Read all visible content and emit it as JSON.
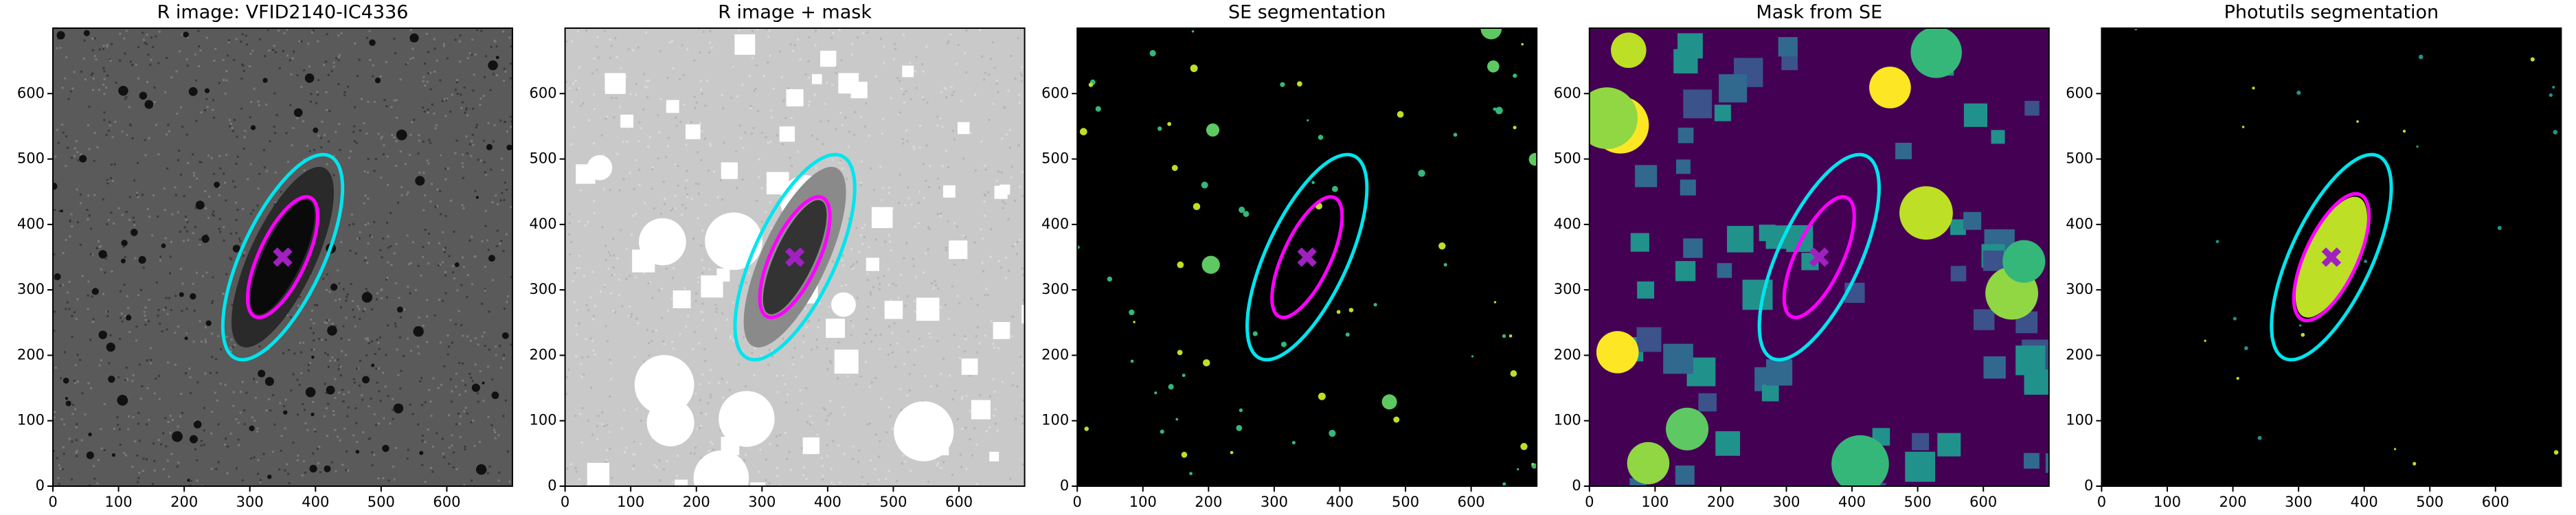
{
  "chart_data": [
    {
      "type": "image",
      "title": "R image: VFID2140-IC4336",
      "background": "#5a5a5a",
      "decor": "noise",
      "xlim": [
        0,
        700
      ],
      "ylim": [
        0,
        700
      ],
      "xticks": [
        0,
        100,
        200,
        300,
        400,
        500,
        600
      ],
      "yticks": [
        0,
        100,
        200,
        300,
        400,
        500,
        600
      ],
      "ellipses": [
        {
          "x": 350,
          "y": 350,
          "a": 170,
          "b": 62,
          "angle": 65,
          "color": "#00e5ee"
        },
        {
          "x": 350,
          "y": 350,
          "a": 100,
          "b": 36,
          "angle": 65,
          "color": "#ff00ff"
        }
      ],
      "marker": {
        "x": 350,
        "y": 350,
        "color": "#a020c0"
      }
    },
    {
      "type": "image",
      "title": "R image + mask",
      "background": "#c9c9c9",
      "decor": "mask",
      "xlim": [
        0,
        700
      ],
      "ylim": [
        0,
        700
      ],
      "xticks": [
        0,
        100,
        200,
        300,
        400,
        500,
        600
      ],
      "yticks": [
        0,
        100,
        200,
        300,
        400,
        500,
        600
      ],
      "ellipses": [
        {
          "x": 350,
          "y": 350,
          "a": 170,
          "b": 62,
          "angle": 65,
          "color": "#00e5ee"
        },
        {
          "x": 350,
          "y": 350,
          "a": 100,
          "b": 36,
          "angle": 65,
          "color": "#ff00ff"
        }
      ],
      "marker": {
        "x": 350,
        "y": 350,
        "color": "#a020c0"
      }
    },
    {
      "type": "image",
      "title": "SE segmentation",
      "background": "#000000",
      "decor": "seg",
      "xlim": [
        0,
        700
      ],
      "ylim": [
        0,
        700
      ],
      "xticks": [
        0,
        100,
        200,
        300,
        400,
        500,
        600
      ],
      "yticks": [
        0,
        100,
        200,
        300,
        400,
        500,
        600
      ],
      "ellipses": [
        {
          "x": 350,
          "y": 350,
          "a": 170,
          "b": 62,
          "angle": 65,
          "color": "#00e5ee"
        },
        {
          "x": 350,
          "y": 350,
          "a": 100,
          "b": 36,
          "angle": 65,
          "color": "#ff00ff"
        }
      ],
      "marker": {
        "x": 350,
        "y": 350,
        "color": "#a020c0"
      }
    },
    {
      "type": "image",
      "title": "Mask from SE",
      "background": "#440154",
      "decor": "labels",
      "xlim": [
        0,
        700
      ],
      "ylim": [
        0,
        700
      ],
      "xticks": [
        0,
        100,
        200,
        300,
        400,
        500,
        600
      ],
      "yticks": [
        0,
        100,
        200,
        300,
        400,
        500,
        600
      ],
      "ellipses": [
        {
          "x": 350,
          "y": 350,
          "a": 170,
          "b": 62,
          "angle": 65,
          "color": "#00e5ee"
        },
        {
          "x": 350,
          "y": 350,
          "a": 100,
          "b": 36,
          "angle": 65,
          "color": "#ff00ff"
        }
      ],
      "marker": {
        "x": 350,
        "y": 350,
        "color": "#a020c0"
      }
    },
    {
      "type": "image",
      "title": "Photutils segmentation",
      "background": "#000000",
      "decor": "photutils",
      "xlim": [
        0,
        700
      ],
      "ylim": [
        0,
        700
      ],
      "xticks": [
        0,
        100,
        200,
        300,
        400,
        500,
        600
      ],
      "yticks": [
        0,
        100,
        200,
        300,
        400,
        500,
        600
      ],
      "ellipses": [
        {
          "x": 350,
          "y": 350,
          "a": 170,
          "b": 62,
          "angle": 65,
          "color": "#00e5ee"
        },
        {
          "x": 350,
          "y": 350,
          "a": 105,
          "b": 40,
          "angle": 65,
          "color": "#ff00ff"
        }
      ],
      "marker": {
        "x": 350,
        "y": 350,
        "color": "#a020c0"
      }
    }
  ]
}
